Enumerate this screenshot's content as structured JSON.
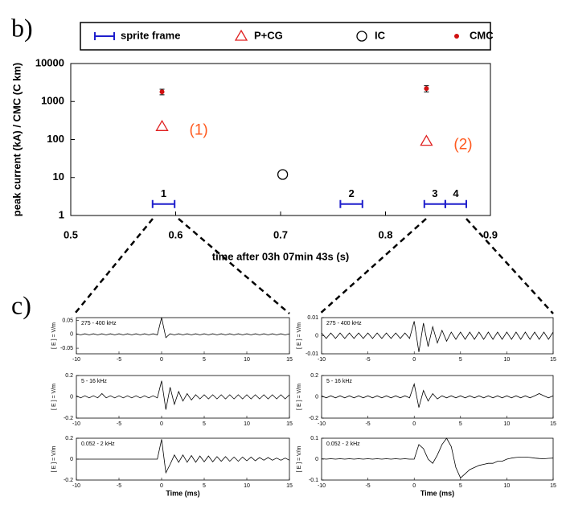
{
  "panel_labels": [
    "b)",
    "c)"
  ],
  "chart_data": [
    {
      "type": "scatter",
      "log_y": true,
      "ylabel": "peak current (kA) / CMC (C km)",
      "xlabel": "time after 03h 07min 43s (s)",
      "xlim": [
        0.5,
        0.9
      ],
      "xticks": [
        0.5,
        0.6,
        0.7,
        0.8,
        0.9
      ],
      "ylim": [
        1,
        10000
      ],
      "yticks": [
        1,
        10,
        100,
        1000,
        10000
      ],
      "legend": "top",
      "annotation_color": "#ff5a1f",
      "annotations": [
        "(1)",
        "(2)"
      ],
      "series": [
        {
          "name": "sprite frame",
          "color": "#1f1fcc",
          "marker": "interval",
          "x_start": [
            0.578,
            0.757,
            0.837,
            0.857
          ],
          "x_end": [
            0.599,
            0.778,
            0.857,
            0.877
          ],
          "values": [
            2,
            2,
            2,
            2
          ],
          "labels": [
            "1",
            "2",
            "3",
            "4"
          ]
        },
        {
          "name": "P+CG",
          "color": "#e02020",
          "marker": "triangle",
          "x": [
            0.587,
            0.839
          ],
          "values": [
            220,
            90
          ]
        },
        {
          "name": "IC",
          "color": "#000000",
          "marker": "circle",
          "x": [
            0.702
          ],
          "values": [
            12
          ]
        },
        {
          "name": "CMC",
          "color": "#d01010",
          "marker": "dot",
          "x": [
            0.587,
            0.839
          ],
          "values": [
            1800,
            2200
          ],
          "errors": [
            300,
            400
          ]
        }
      ]
    },
    {
      "type": "line",
      "band": "275 - 400 kHz",
      "ylabel": "[ E ] = V/m",
      "color": "#000000",
      "xlim": [
        -10,
        15
      ],
      "xticks": [
        -10,
        -5,
        0,
        5,
        10,
        15
      ],
      "ylim": [
        -0.07,
        0.06
      ],
      "yticks": [
        -0.05,
        0,
        0.05
      ],
      "x": [
        -10,
        -9.5,
        -9,
        -8.5,
        -8,
        -7.5,
        -7,
        -6.5,
        -6,
        -5.5,
        -5,
        -4.5,
        -4,
        -3.5,
        -3,
        -2.5,
        -2,
        -1.5,
        -1,
        -0.5,
        0,
        0.5,
        1,
        1.5,
        2,
        2.5,
        3,
        3.5,
        4,
        4.5,
        5,
        5.5,
        6,
        6.5,
        7,
        7.5,
        8,
        8.5,
        9,
        9.5,
        10,
        10.5,
        11,
        11.5,
        12,
        12.5,
        13,
        13.5,
        14,
        14.5,
        15
      ],
      "values": [
        0.002,
        -0.002,
        0.002,
        -0.002,
        0.002,
        -0.002,
        0.002,
        -0.002,
        0.002,
        -0.002,
        0.002,
        -0.002,
        0.002,
        -0.002,
        0.002,
        -0.002,
        0.002,
        -0.002,
        0.002,
        -0.002,
        0.06,
        -0.012,
        0.002,
        -0.002,
        0.002,
        -0.002,
        0.002,
        -0.002,
        0.002,
        -0.002,
        0.002,
        -0.002,
        0.002,
        -0.002,
        0.002,
        -0.002,
        0.002,
        -0.002,
        0.002,
        -0.002,
        0.002,
        -0.002,
        0.002,
        -0.002,
        0.002,
        -0.002,
        0.002,
        -0.002,
        0.002,
        -0.002,
        0.002
      ]
    },
    {
      "type": "line",
      "band": "5 - 16 kHz",
      "ylabel": "[ E ] = V/m",
      "color": "#000000",
      "xlim": [
        -10,
        15
      ],
      "xticks": [
        -10,
        -5,
        0,
        5,
        10,
        15
      ],
      "ylim": [
        -0.2,
        0.2
      ],
      "yticks": [
        -0.2,
        0,
        0.2
      ],
      "x": [
        -10,
        -9.5,
        -9,
        -8.5,
        -8,
        -7.5,
        -7,
        -6.5,
        -6,
        -5.5,
        -5,
        -4.5,
        -4,
        -3.5,
        -3,
        -2.5,
        -2,
        -1.5,
        -1,
        -0.5,
        0,
        0.5,
        1,
        1.5,
        2,
        2.5,
        3,
        3.5,
        4,
        4.5,
        5,
        5.5,
        6,
        6.5,
        7,
        7.5,
        8,
        8.5,
        9,
        9.5,
        10,
        10.5,
        11,
        11.5,
        12,
        12.5,
        13,
        13.5,
        14,
        14.5,
        15
      ],
      "values": [
        0.01,
        -0.01,
        0.01,
        -0.01,
        0.01,
        -0.01,
        0.03,
        -0.01,
        0.01,
        -0.01,
        0.01,
        -0.01,
        0.01,
        -0.01,
        0.01,
        -0.01,
        0.01,
        -0.01,
        0.01,
        -0.01,
        0.15,
        -0.12,
        0.09,
        -0.07,
        0.05,
        -0.04,
        0.03,
        -0.03,
        0.02,
        -0.02,
        0.02,
        -0.02,
        0.02,
        -0.02,
        0.02,
        -0.02,
        0.02,
        -0.02,
        0.02,
        -0.02,
        0.02,
        -0.02,
        0.02,
        -0.02,
        0.02,
        -0.02,
        0.02,
        -0.02,
        0.02,
        -0.02,
        0.02
      ]
    },
    {
      "type": "line",
      "band": "0.052 - 2 kHz",
      "ylabel": "[ E ] = V/m",
      "xlabel": "Time (ms)",
      "color": "#000000",
      "xlim": [
        -10,
        15
      ],
      "xticks": [
        -10,
        -5,
        0,
        5,
        10,
        15
      ],
      "ylim": [
        -0.2,
        0.2
      ],
      "yticks": [
        -0.2,
        0,
        0.2
      ],
      "x": [
        -10,
        -9.5,
        -9,
        -8.5,
        -8,
        -7.5,
        -7,
        -6.5,
        -6,
        -5.5,
        -5,
        -4.5,
        -4,
        -3.5,
        -3,
        -2.5,
        -2,
        -1.5,
        -1,
        -0.5,
        0,
        0.5,
        1,
        1.5,
        2,
        2.5,
        3,
        3.5,
        4,
        4.5,
        5,
        5.5,
        6,
        6.5,
        7,
        7.5,
        8,
        8.5,
        9,
        9.5,
        10,
        10.5,
        11,
        11.5,
        12,
        12.5,
        13,
        13.5,
        14,
        14.5,
        15
      ],
      "values": [
        0,
        0,
        0,
        0,
        0,
        0,
        0,
        0,
        0,
        0,
        0,
        0,
        0,
        0,
        0,
        0,
        0,
        0,
        0,
        0,
        0.19,
        -0.13,
        -0.05,
        0.04,
        -0.03,
        0.04,
        -0.03,
        0.035,
        -0.03,
        0.03,
        -0.025,
        0.03,
        -0.025,
        0.025,
        -0.02,
        0.025,
        -0.02,
        0.02,
        -0.02,
        0.02,
        -0.015,
        0.02,
        -0.015,
        0.015,
        -0.01,
        0.015,
        -0.01,
        0.01,
        -0.01,
        0.01,
        -0.01
      ]
    },
    {
      "type": "line",
      "band": "275 - 400 kHz",
      "ylabel": "[ E ] = V/m",
      "color": "#000000",
      "xlim": [
        -10,
        15
      ],
      "xticks": [
        -10,
        -5,
        0,
        5,
        10,
        15
      ],
      "ylim": [
        -0.01,
        0.01
      ],
      "yticks": [
        -0.01,
        0,
        0.01
      ],
      "x": [
        -10,
        -9.5,
        -9,
        -8.5,
        -8,
        -7.5,
        -7,
        -6.5,
        -6,
        -5.5,
        -5,
        -4.5,
        -4,
        -3.5,
        -3,
        -2.5,
        -2,
        -1.5,
        -1,
        -0.5,
        0,
        0.5,
        1,
        1.5,
        2,
        2.5,
        3,
        3.5,
        4,
        4.5,
        5,
        5.5,
        6,
        6.5,
        7,
        7.5,
        8,
        8.5,
        9,
        9.5,
        10,
        10.5,
        11,
        11.5,
        12,
        12.5,
        13,
        13.5,
        14,
        14.5,
        15
      ],
      "values": [
        0.0015,
        -0.0015,
        0.0015,
        -0.0015,
        0.0015,
        -0.0015,
        0.0015,
        -0.0015,
        0.0015,
        -0.0015,
        0.0015,
        -0.0015,
        0.0015,
        -0.0015,
        0.0015,
        -0.0015,
        0.0015,
        -0.0015,
        0.0015,
        -0.0015,
        0.008,
        -0.009,
        0.007,
        -0.006,
        0.005,
        -0.004,
        0.003,
        -0.003,
        0.002,
        -0.002,
        0.002,
        -0.002,
        0.002,
        -0.002,
        0.002,
        -0.002,
        0.002,
        -0.002,
        0.002,
        -0.002,
        0.002,
        -0.002,
        0.002,
        -0.002,
        0.002,
        -0.002,
        0.002,
        -0.002,
        0.002,
        -0.002,
        0.002
      ]
    },
    {
      "type": "line",
      "band": "5 - 16 kHz",
      "ylabel": "[ E ] = V/m",
      "color": "#000000",
      "xlim": [
        -10,
        15
      ],
      "xticks": [
        -10,
        -5,
        0,
        5,
        10,
        15
      ],
      "ylim": [
        -0.2,
        0.2
      ],
      "yticks": [
        -0.2,
        0,
        0.2
      ],
      "x": [
        -10,
        -9.5,
        -9,
        -8.5,
        -8,
        -7.5,
        -7,
        -6.5,
        -6,
        -5.5,
        -5,
        -4.5,
        -4,
        -3.5,
        -3,
        -2.5,
        -2,
        -1.5,
        -1,
        -0.5,
        0,
        0.5,
        1,
        1.5,
        2,
        2.5,
        3,
        3.5,
        4,
        4.5,
        5,
        5.5,
        6,
        6.5,
        7,
        7.5,
        8,
        8.5,
        9,
        9.5,
        10,
        10.5,
        11,
        11.5,
        12,
        12.5,
        13,
        13.5,
        14,
        14.5,
        15
      ],
      "values": [
        0.01,
        -0.01,
        0.01,
        -0.01,
        0.01,
        -0.01,
        0.01,
        -0.01,
        0.01,
        -0.01,
        0.01,
        -0.01,
        0.01,
        -0.01,
        0.01,
        -0.01,
        0.01,
        -0.01,
        0.01,
        -0.01,
        0.12,
        -0.1,
        0.06,
        -0.04,
        0.03,
        -0.02,
        0.01,
        -0.01,
        0.01,
        -0.01,
        0.01,
        -0.01,
        0.01,
        -0.01,
        0.01,
        -0.01,
        0.01,
        -0.01,
        0.01,
        -0.01,
        0.01,
        -0.01,
        0.01,
        -0.01,
        0.01,
        -0.01,
        0.01,
        0.03,
        0.01,
        -0.01,
        0.01
      ]
    },
    {
      "type": "line",
      "band": "0.052 - 2 kHz",
      "ylabel": "[ E ] = V/m",
      "xlabel": "Time (ms)",
      "color": "#000000",
      "xlim": [
        -10,
        15
      ],
      "xticks": [
        -10,
        -5,
        0,
        5,
        10,
        15
      ],
      "ylim": [
        -0.1,
        0.1
      ],
      "yticks": [
        -0.1,
        0,
        0.1
      ],
      "x": [
        -10,
        -9.5,
        -9,
        -8.5,
        -8,
        -7.5,
        -7,
        -6.5,
        -6,
        -5.5,
        -5,
        -4.5,
        -4,
        -3.5,
        -3,
        -2.5,
        -2,
        -1.5,
        -1,
        -0.5,
        0,
        0.5,
        1,
        1.5,
        2,
        2.5,
        3,
        3.5,
        4,
        4.5,
        5,
        5.5,
        6,
        6.5,
        7,
        7.5,
        8,
        8.5,
        9,
        9.5,
        10,
        10.5,
        11,
        11.5,
        12,
        12.5,
        13,
        13.5,
        14,
        14.5,
        15
      ],
      "values": [
        0.002,
        0,
        0.002,
        0,
        0.002,
        0,
        0.002,
        0,
        0.002,
        0,
        0.002,
        0,
        0.002,
        0,
        0.002,
        0,
        0.002,
        0,
        0.002,
        0,
        0,
        0.07,
        0.05,
        0,
        -0.02,
        0.02,
        0.07,
        0.1,
        0.06,
        -0.04,
        -0.09,
        -0.07,
        -0.05,
        -0.04,
        -0.03,
        -0.025,
        -0.02,
        -0.02,
        -0.01,
        -0.01,
        0,
        0.005,
        0.008,
        0.01,
        0.01,
        0.008,
        0.005,
        0.003,
        0.002,
        0.004,
        0.005
      ]
    }
  ]
}
